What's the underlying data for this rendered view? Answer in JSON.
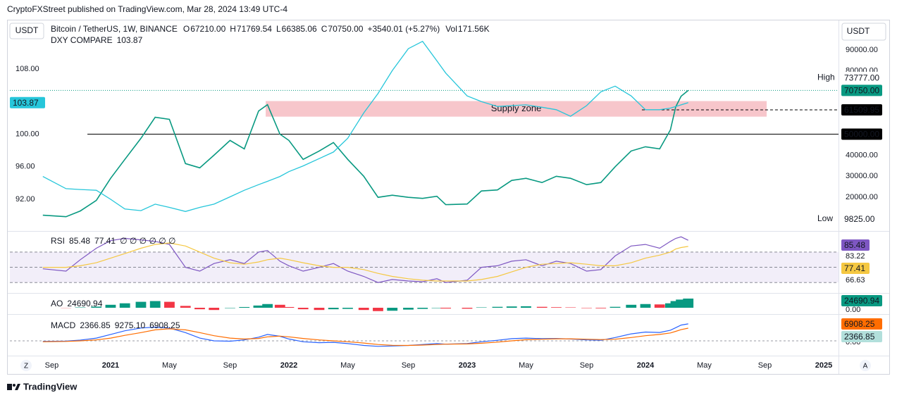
{
  "header": {
    "published": "CryptoFXStreet published on TradingView.com, Mar 28, 2024 13:49 UTC-4",
    "currency_left": "USDT",
    "currency_right": "USDT",
    "ohlc": [
      {
        "key": "O",
        "value": "67210.00"
      },
      {
        "key": "H",
        "value": "71769.54"
      },
      {
        "key": "L",
        "value": "66385.06"
      },
      {
        "key": "C",
        "value": "70750.00"
      }
    ],
    "change": "+3540.01 (+5.27%)",
    "volume_key": "Vol",
    "volume": "171.56K"
  },
  "footer": {
    "brand": "TradingView",
    "left_button": "Z",
    "right_button": "A"
  },
  "chart_data": [
    {
      "type": "line",
      "x": [
        2020.62,
        2020.75,
        2020.83,
        2020.92,
        2021.0,
        2021.08,
        2021.17,
        2021.25,
        2021.33,
        2021.42,
        2021.5,
        2021.58,
        2021.67,
        2021.75,
        2021.83,
        2021.88,
        2021.95,
        2022.0,
        2022.08,
        2022.17,
        2022.25,
        2022.33,
        2022.42,
        2022.5,
        2022.58,
        2022.67,
        2022.75,
        2022.83,
        2022.88,
        2023.0,
        2023.08,
        2023.17,
        2023.25,
        2023.33,
        2023.42,
        2023.5,
        2023.58,
        2023.67,
        2023.75,
        2023.83,
        2023.92,
        2024.0,
        2024.08,
        2024.14,
        2024.17,
        2024.2,
        2024.24
      ],
      "xlim": [
        2020.435,
        2025.083
      ],
      "xticks": [
        {
          "value": 2020.67,
          "label": "Sep"
        },
        {
          "value": 2021,
          "label": "2021"
        },
        {
          "value": 2021.33,
          "label": "May"
        },
        {
          "value": 2021.67,
          "label": "Sep"
        },
        {
          "value": 2022,
          "label": "2022"
        },
        {
          "value": 2022.33,
          "label": "May"
        },
        {
          "value": 2022.67,
          "label": "Sep"
        },
        {
          "value": 2023,
          "label": "2023"
        },
        {
          "value": 2023.33,
          "label": "May"
        },
        {
          "value": 2023.67,
          "label": "Sep"
        },
        {
          "value": 2024,
          "label": "2024"
        },
        {
          "value": 2024.33,
          "label": "May"
        },
        {
          "value": 2024.67,
          "label": "Sep"
        },
        {
          "value": 2025,
          "label": "2025"
        }
      ],
      "series": [
        {
          "name": "Bitcoin / TetherUS, 1W, BINANCE",
          "color": "#089981",
          "values": [
            11500,
            10800,
            13500,
            18500,
            29000,
            38000,
            48000,
            58000,
            57000,
            36000,
            34000,
            40000,
            47000,
            43000,
            61000,
            64000,
            50000,
            47000,
            38000,
            42000,
            46000,
            38000,
            30000,
            20000,
            21000,
            20000,
            19500,
            20500,
            16500,
            16800,
            23000,
            23500,
            28000,
            29000,
            27000,
            30000,
            29000,
            26000,
            27000,
            34500,
            42000,
            44000,
            43000,
            52000,
            63000,
            68000,
            70750
          ]
        },
        {
          "name": "DXY COMPARE",
          "color": "#26c6da",
          "axis": "y2",
          "values": [
            94.8,
            93.3,
            93.2,
            93.1,
            92.0,
            90.8,
            90.6,
            91.4,
            91.0,
            90.5,
            91.0,
            91.4,
            92.3,
            93.1,
            93.8,
            94.2,
            94.8,
            95.4,
            96.1,
            97.0,
            97.8,
            99.5,
            102.6,
            105.0,
            107.8,
            110.5,
            111.4,
            109.0,
            107.5,
            104.7,
            104.0,
            103.4,
            103.5,
            103.6,
            103.3,
            103.0,
            102.2,
            103.5,
            105.2,
            105.9,
            104.7,
            103.0,
            103.0,
            103.2,
            103.4,
            103.6,
            103.87
          ],
          "last": {
            "value": 103.87,
            "label": "103.87"
          }
        }
      ],
      "ylim": [
        4333,
        104000
      ],
      "yticks": [
        {
          "value": 90000,
          "label": "90000.00"
        },
        {
          "value": 80000,
          "label": "80000.00"
        },
        {
          "value": 40000,
          "label": "40000.00"
        },
        {
          "value": 30000,
          "label": "30000.00"
        },
        {
          "value": 20000,
          "label": "20000.00"
        }
      ],
      "y2lim": [
        88.19,
        113.97
      ],
      "y2ticks": [
        {
          "value": 108,
          "label": "108.00"
        },
        {
          "value": 100,
          "label": "100.00"
        },
        {
          "value": 96,
          "label": "96.00"
        },
        {
          "value": 92,
          "label": "92.00"
        }
      ],
      "levels": [
        {
          "name": "High",
          "value": 73777,
          "label": "73777.00",
          "color": "#ffffff"
        },
        {
          "value": 70750,
          "label": "70750.00",
          "color": "#089981",
          "line": "dotted",
          "start": 2020.435
        },
        {
          "value": 61509.95,
          "label": "61509.95",
          "color": "#000000",
          "line": "dashed",
          "start": 2023.98
        },
        {
          "value": 50000,
          "label": "50000.00",
          "color": "#000000",
          "line": "solid",
          "start": 2020.87
        },
        {
          "name": "Low",
          "value": 9825,
          "label": "9825.00",
          "color": "#ffffff"
        }
      ],
      "zone": {
        "label": "Supply zone",
        "x": [
          2021.87,
          2024.68
        ],
        "y": [
          58300,
          65700
        ],
        "color": "#f7c6cb"
      }
    },
    {
      "type": "line",
      "title": "RSI",
      "placeholders": "∅ ∅ ∅ ∅ ∅ ∅",
      "series": [
        {
          "color": "#7e57c2",
          "values": [
            48,
            45,
            60,
            75,
            85,
            88,
            86,
            84,
            80,
            50,
            45,
            55,
            60,
            55,
            70,
            72,
            58,
            52,
            45,
            50,
            55,
            45,
            38,
            30,
            34,
            32,
            31,
            35,
            30,
            33,
            50,
            52,
            58,
            60,
            52,
            58,
            55,
            45,
            47,
            65,
            78,
            80,
            75,
            84,
            88,
            90,
            85.48
          ],
          "last": {
            "value": 85.48,
            "label": "85.48"
          }
        },
        {
          "color": "#f5c842",
          "values": [
            50,
            50,
            52,
            56,
            62,
            68,
            75,
            80,
            82,
            78,
            70,
            62,
            56,
            54,
            57,
            60,
            62,
            60,
            56,
            52,
            50,
            50,
            47,
            42,
            38,
            35,
            33,
            32,
            32,
            32,
            34,
            38,
            44,
            50,
            54,
            55,
            56,
            54,
            52,
            52,
            56,
            62,
            66,
            70,
            74,
            76,
            77.41
          ],
          "last": {
            "value": 77.41,
            "label": "77.41"
          }
        }
      ],
      "ylim": [
        20,
        94
      ],
      "bands": [
        30,
        50,
        70
      ],
      "scale_labels": [
        "83.22",
        "66.63"
      ]
    },
    {
      "type": "bar",
      "title": "AO",
      "values": [
        0,
        -500,
        1000,
        3000,
        8000,
        12000,
        16000,
        18000,
        16000,
        5000,
        -4000,
        -6000,
        -1000,
        2000,
        6000,
        10000,
        8000,
        2000,
        -4000,
        -6000,
        -4000,
        -3000,
        -6000,
        -9000,
        -8000,
        -5000,
        -3000,
        -1000,
        -2000,
        -2500,
        1000,
        2500,
        3500,
        4000,
        2500,
        1500,
        1000,
        -1000,
        -1500,
        2500,
        8000,
        10000,
        9000,
        12000,
        18000,
        22000,
        24690.94
      ],
      "last": {
        "value": 24690.94,
        "label": "24690.94"
      },
      "colors": {
        "up": "#089981",
        "down": "#f23645"
      },
      "ylim": [
        -17000,
        36000
      ],
      "yticks": [
        {
          "value": 0,
          "label": "0.00"
        }
      ]
    },
    {
      "type": "line",
      "title": "MACD",
      "histogram": {
        "label": "2366.85",
        "color": "#26a69a"
      },
      "series": [
        {
          "color": "#2962ff",
          "values": [
            -300,
            -100,
            400,
            1500,
            3500,
            5500,
            7000,
            7500,
            7000,
            4500,
            1500,
            0,
            -200,
            500,
            2000,
            3500,
            2500,
            1000,
            -500,
            -1000,
            -800,
            -1500,
            -2500,
            -3000,
            -2800,
            -2500,
            -2000,
            -1500,
            -1800,
            -1500,
            -500,
            300,
            1200,
            1500,
            1200,
            1300,
            1000,
            500,
            300,
            1800,
            3800,
            4800,
            4600,
            5800,
            7200,
            8600,
            9275.1
          ],
          "last": {
            "value": 9275.1,
            "label": "9275.10"
          }
        },
        {
          "color": "#ff6d00",
          "values": [
            -500,
            -300,
            0,
            500,
            1500,
            3000,
            4500,
            6000,
            6600,
            6000,
            4500,
            2800,
            1500,
            1000,
            1300,
            2200,
            2600,
            2200,
            1300,
            500,
            0,
            -500,
            -1200,
            -2000,
            -2400,
            -2500,
            -2300,
            -2000,
            -1800,
            -1700,
            -1300,
            -700,
            0,
            600,
            900,
            1100,
            1100,
            900,
            700,
            900,
            1800,
            2800,
            3500,
            4300,
            5200,
            6100,
            6908.25
          ],
          "last": {
            "value": 6908.25,
            "label": "6908.25"
          }
        }
      ],
      "ylim": [
        -6150,
        13850
      ],
      "yticks": [
        {
          "value": 0,
          "label": "0.00"
        }
      ]
    }
  ]
}
